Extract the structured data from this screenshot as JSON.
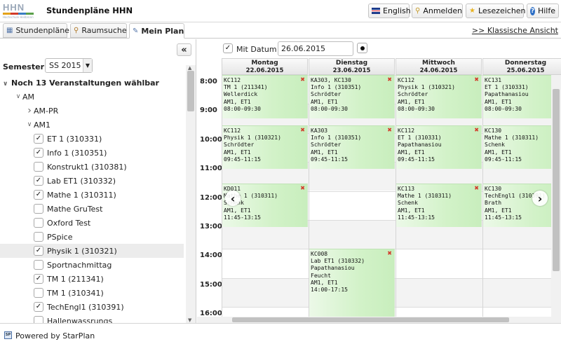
{
  "header": {
    "logo_text": "HHN",
    "logo_subtext": "Hochschule Heilbronn",
    "app_title": "Stundenpläne HHN",
    "buttons": {
      "english": "English",
      "login": "Anmelden",
      "bookmarks": "Lesezeichen",
      "help": "Hilfe"
    }
  },
  "tabs": {
    "schedules": "Stundenpläne",
    "room_search": "Raumsuche",
    "my_plan": "Mein Plan",
    "classic_view": ">> Klassische Ansicht"
  },
  "left": {
    "semester_label": "Semester:",
    "semester_value": "SS 2015",
    "remaining": "Noch 13 Veranstaltungen wählbar",
    "tree": [
      {
        "label": "AM",
        "type": "group"
      },
      {
        "label": "AM-PR",
        "type": "group"
      },
      {
        "label": "AM1",
        "type": "group"
      },
      {
        "label": "ET 1 (310331)",
        "checked": true
      },
      {
        "label": "Info 1 (310351)",
        "checked": true
      },
      {
        "label": "Konstrukt1 (310381)",
        "checked": false
      },
      {
        "label": "Lab ET1 (310332)",
        "checked": true
      },
      {
        "label": "Mathe 1 (310311)",
        "checked": true
      },
      {
        "label": "Mathe GruTest",
        "checked": false
      },
      {
        "label": "Oxford Test",
        "checked": false
      },
      {
        "label": "PSpice",
        "checked": false
      },
      {
        "label": "Physik 1 (310321)",
        "checked": true
      },
      {
        "label": "Sportnachmittag",
        "checked": false
      },
      {
        "label": "TM 1 (211341)",
        "checked": true
      },
      {
        "label": "TM 1 (310341)",
        "checked": false
      },
      {
        "label": "TechEngl1 (310391)",
        "checked": true
      },
      {
        "label": "Hallenwassrungs",
        "checked": false
      }
    ]
  },
  "datebar": {
    "with_date_label": "Mit Datum",
    "date_value": "26.06.2015"
  },
  "days": [
    {
      "name": "Montag",
      "date": "22.06.2015"
    },
    {
      "name": "Dienstag",
      "date": "23.06.2015"
    },
    {
      "name": "Mittwoch",
      "date": "24.06.2015"
    },
    {
      "name": "Donnerstag",
      "date": "25.06.2015"
    }
  ],
  "times": [
    "8:00",
    "9:00",
    "10:00",
    "11:00",
    "12:00",
    "13:00",
    "14:00",
    "15:00",
    "16:00"
  ],
  "events": [
    {
      "day": 0,
      "start_hour": 8.0,
      "end_hour": 9.5,
      "lines": [
        "KC112",
        "TM 1 (211341)",
        "Wellerdick",
        "AM1, ET1",
        "08:00-09:30"
      ]
    },
    {
      "day": 1,
      "start_hour": 8.0,
      "end_hour": 9.5,
      "lines": [
        "KA303, KC130",
        "Info 1 (310351)",
        "Schrödter",
        "AM1, ET1",
        "08:00-09:30"
      ]
    },
    {
      "day": 2,
      "start_hour": 8.0,
      "end_hour": 9.5,
      "lines": [
        "KC112",
        "Physik 1 (310321)",
        "Schrödter",
        "AM1, ET1",
        "08:00-09:30"
      ]
    },
    {
      "day": 3,
      "start_hour": 8.0,
      "end_hour": 9.5,
      "lines": [
        "KC131",
        "ET 1 (310331)",
        "Papathanasiou",
        "AM1, ET1",
        "08:00-09:30"
      ]
    },
    {
      "day": 0,
      "start_hour": 9.75,
      "end_hour": 11.25,
      "lines": [
        "KC112",
        "Physik 1 (310321)",
        "Schrödter",
        "AM1, ET1",
        "09:45-11:15"
      ]
    },
    {
      "day": 1,
      "start_hour": 9.75,
      "end_hour": 11.25,
      "lines": [
        "KA303",
        "Info 1 (310351)",
        "Schrödter",
        "AM1, ET1",
        "09:45-11:15"
      ]
    },
    {
      "day": 2,
      "start_hour": 9.75,
      "end_hour": 11.25,
      "lines": [
        "KC112",
        "ET 1 (310331)",
        "Papathanasiou",
        "AM1, ET1",
        "09:45-11:15"
      ]
    },
    {
      "day": 3,
      "start_hour": 9.75,
      "end_hour": 11.25,
      "lines": [
        "KC130",
        "Mathe 1 (310311)",
        "Schenk",
        "AM1, ET1",
        "09:45-11:15"
      ]
    },
    {
      "day": 0,
      "start_hour": 11.75,
      "end_hour": 13.25,
      "lines": [
        "KD011",
        "Mathe 1 (310311)",
        "Schenk",
        "AM1, ET1",
        "11:45-13:15"
      ]
    },
    {
      "day": 2,
      "start_hour": 11.75,
      "end_hour": 13.25,
      "lines": [
        "KC113",
        "Mathe 1 (310311)",
        "Schenk",
        "AM1, ET1",
        "11:45-13:15"
      ]
    },
    {
      "day": 3,
      "start_hour": 11.75,
      "end_hour": 13.25,
      "lines": [
        "KC130",
        "TechEngl1 (310391)",
        "Brath",
        "AM1, ET1",
        "11:45-13:15"
      ]
    },
    {
      "day": 1,
      "start_hour": 14.0,
      "end_hour": 17.25,
      "lines": [
        "KC008",
        "Lab ET1 (310332)",
        "Papathanasiou",
        "Feucht",
        "AM1, ET1",
        "14:00-17:15"
      ]
    }
  ],
  "footer": {
    "powered_by": "Powered by StarPlan"
  },
  "colors": {
    "event_green": "#d2f2c8",
    "remove_red": "#d23a2a",
    "logo_grey": "#9aa7b8"
  }
}
